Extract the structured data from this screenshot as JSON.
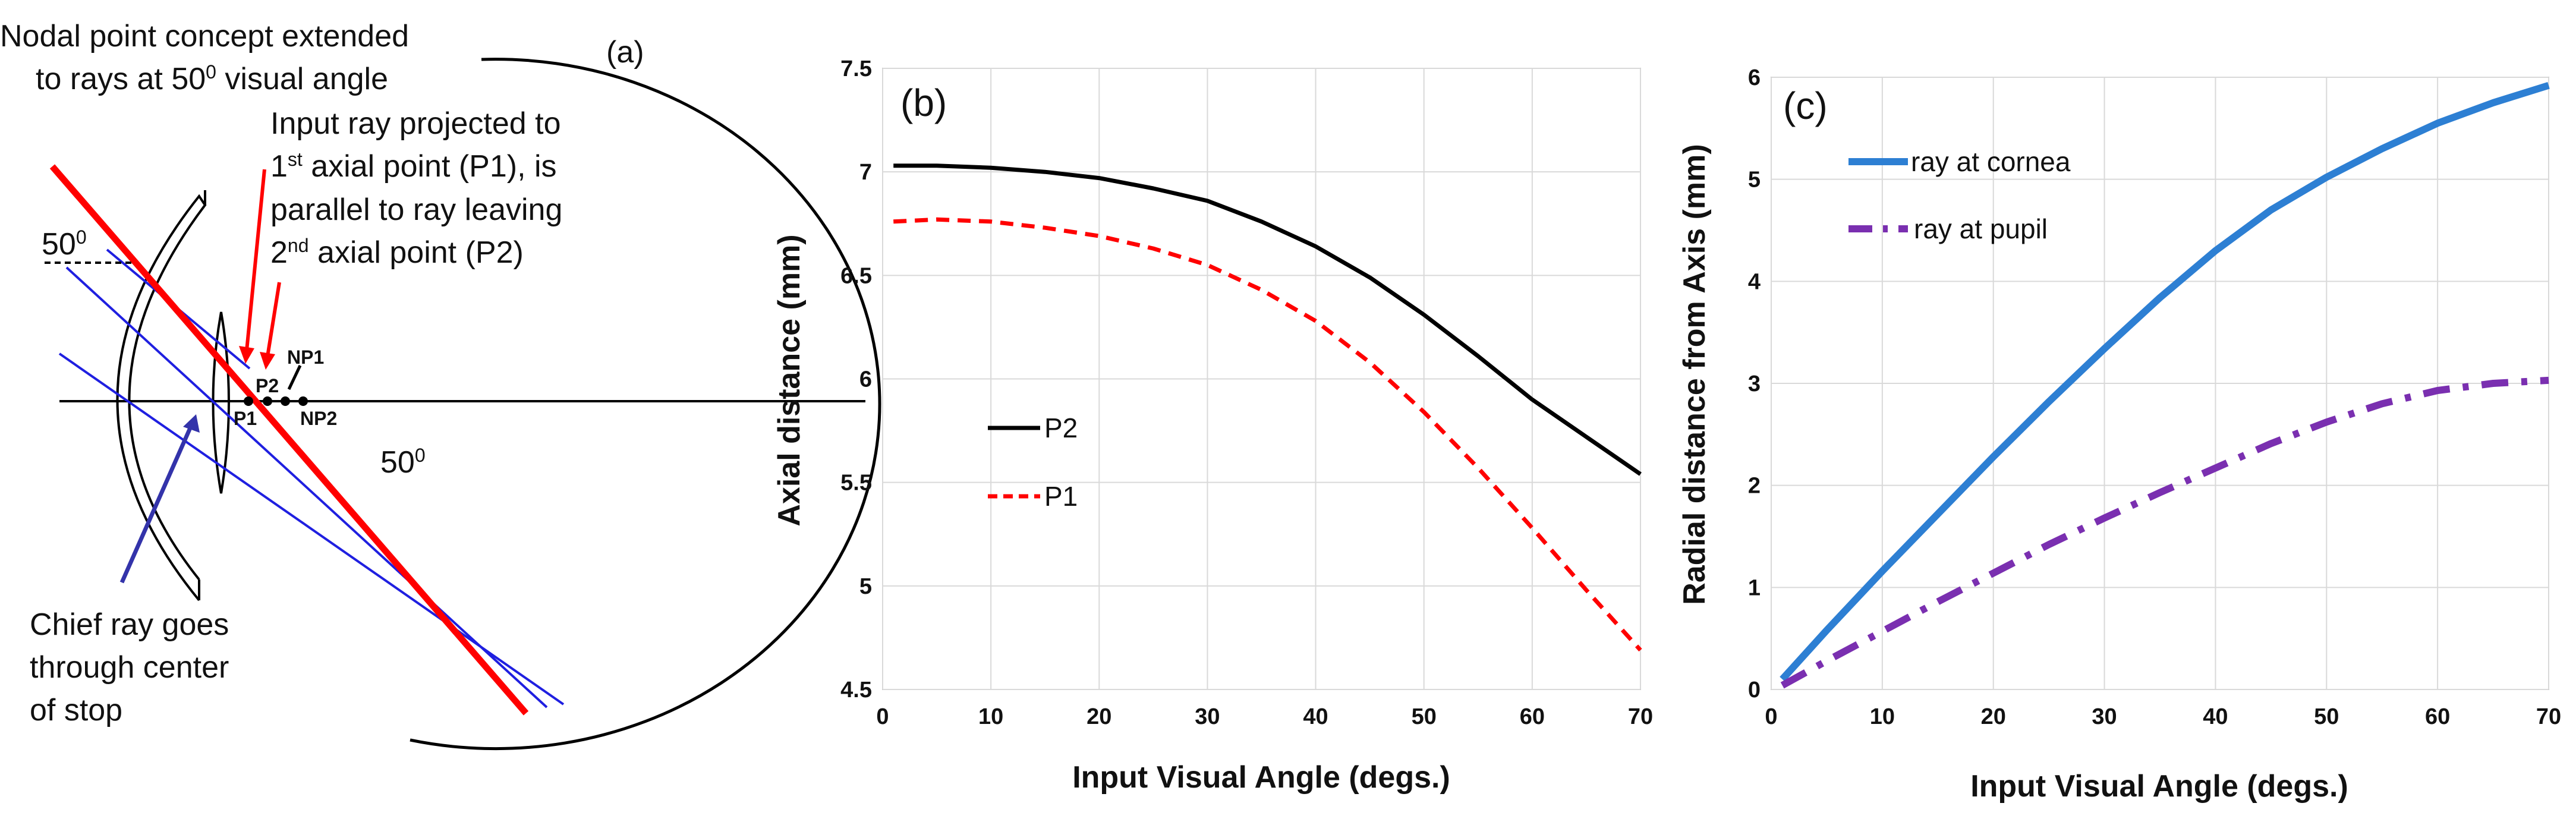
{
  "panel_a": {
    "label": "(a)",
    "text_nodal_1": "Nodal point concept extended",
    "text_nodal_2": "to rays at 50",
    "text_nodal_sup": "0",
    "text_nodal_3": " visual angle",
    "text_input_1": "Input ray projected to",
    "text_input_2a": "1",
    "text_input_2sup": "st",
    "text_input_2b": " axial point (P1), is",
    "text_input_3": "parallel to ray leaving",
    "text_input_4a": "2",
    "text_input_4sup": "nd",
    "text_input_4b": " axial point (P2)",
    "text_chief_1": "Chief ray goes",
    "text_chief_2": "through center",
    "text_chief_3": "of stop",
    "angle_left": "50",
    "angle_left_sup": "0",
    "angle_right": "50",
    "angle_right_sup": "0",
    "pt_np1": "NP1",
    "pt_p2": "P2",
    "pt_p1": "P1",
    "pt_np2": "NP2",
    "colors": {
      "red_ray": "#ff0000",
      "blue_ray": "#1f1fe0",
      "arrow_blue": "#3333aa"
    }
  },
  "chart_data": [
    {
      "type": "line",
      "panel_label": "(b)",
      "title": "",
      "xlabel": "Input Visual Angle (degs.)",
      "ylabel": "Axial distance  (mm)",
      "xlim": [
        0,
        70
      ],
      "ylim": [
        4.5,
        7.5
      ],
      "xticks": [
        "0",
        "10",
        "20",
        "30",
        "40",
        "50",
        "60",
        "70"
      ],
      "yticks": [
        "4.5",
        "5",
        "5.5",
        "6",
        "6.5",
        "7",
        "7.5"
      ],
      "grid": true,
      "legend_position": "middle-left",
      "x": [
        1,
        5,
        10,
        15,
        20,
        25,
        30,
        35,
        40,
        45,
        50,
        55,
        60,
        65,
        70
      ],
      "series": [
        {
          "name": "P2",
          "color": "#000000",
          "style": "solid",
          "values": [
            7.03,
            7.03,
            7.02,
            7.0,
            6.97,
            6.92,
            6.86,
            6.76,
            6.64,
            6.49,
            6.31,
            6.11,
            5.9,
            5.72,
            5.54
          ]
        },
        {
          "name": "P1",
          "color": "#ff0000",
          "style": "dashed",
          "values": [
            6.76,
            6.77,
            6.76,
            6.73,
            6.69,
            6.63,
            6.55,
            6.43,
            6.28,
            6.08,
            5.84,
            5.57,
            5.28,
            4.98,
            4.69
          ]
        }
      ]
    },
    {
      "type": "line",
      "panel_label": "(c)",
      "title": "",
      "xlabel": "Input Visual Angle (degs.)",
      "ylabel": "Radial distance from Axis (mm)",
      "xlim": [
        0,
        70
      ],
      "ylim": [
        0,
        6
      ],
      "xticks": [
        "0",
        "10",
        "20",
        "30",
        "40",
        "50",
        "60",
        "70"
      ],
      "yticks": [
        "0",
        "1",
        "2",
        "3",
        "4",
        "5",
        "6"
      ],
      "grid": true,
      "legend_position": "top-left",
      "x": [
        1,
        5,
        10,
        15,
        20,
        25,
        30,
        35,
        40,
        45,
        50,
        55,
        60,
        65,
        70
      ],
      "series": [
        {
          "name": "ray at cornea",
          "color": "#2d7fd3",
          "style": "solid",
          "values": [
            0.1,
            0.58,
            1.16,
            1.72,
            2.28,
            2.82,
            3.34,
            3.84,
            4.3,
            4.7,
            5.02,
            5.3,
            5.55,
            5.75,
            5.92
          ]
        },
        {
          "name": "ray at pupil",
          "color": "#7a2fb0",
          "style": "dashdot",
          "values": [
            0.04,
            0.28,
            0.57,
            0.86,
            1.14,
            1.42,
            1.68,
            1.93,
            2.17,
            2.41,
            2.62,
            2.8,
            2.93,
            3.0,
            3.03
          ]
        }
      ]
    }
  ]
}
